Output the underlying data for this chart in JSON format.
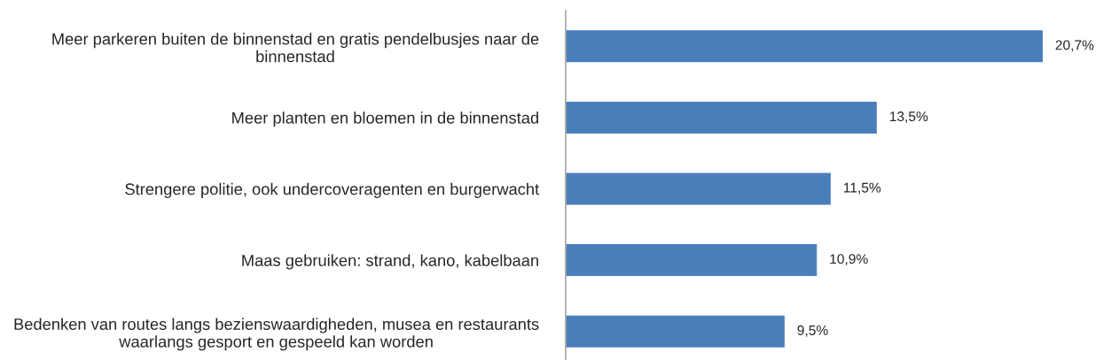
{
  "chart_data": {
    "type": "bar",
    "orientation": "horizontal",
    "categories": [
      "Meer parkeren buiten de binnenstad en gratis pendelbusjes naar de\nbinnenstad",
      "Meer planten en bloemen in de binnenstad",
      "Strengere politie, ook undercoveragenten en burgerwacht",
      "Maas gebruiken: strand, kano, kabelbaan",
      "Bedenken van routes langs bezienswaardigheden, musea en restaurants\nwaarlangs gesport en gespeeld kan worden"
    ],
    "values": [
      20.7,
      13.5,
      11.5,
      10.9,
      9.5
    ],
    "value_labels": [
      "20,7%",
      "13,5%",
      "11,5%",
      "10,9%",
      "9,5%"
    ],
    "color": "#4a7ebb",
    "tick_labels": "y"
  }
}
